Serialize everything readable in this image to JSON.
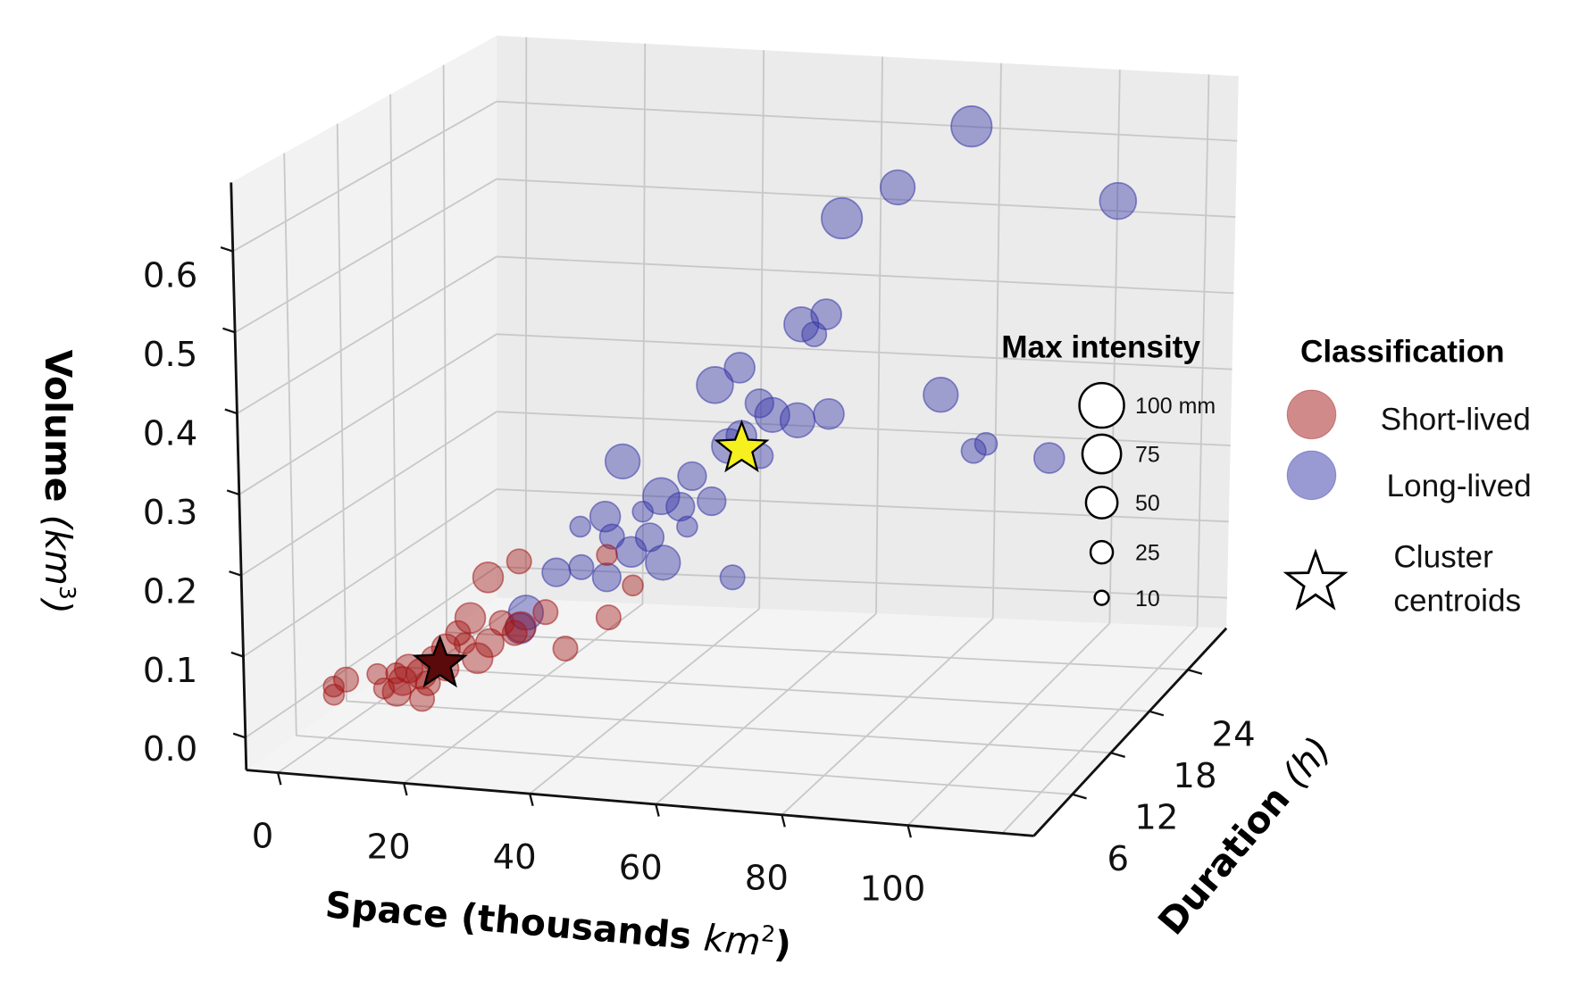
{
  "chart_data": {
    "type": "scatter",
    "projection": "3d",
    "title": "",
    "xlabel": "Space (thousands km²)",
    "xlabel_main": "Space (thousands ",
    "xlabel_unit": "km",
    "xlabel_sup": "2",
    "xlabel_close": ")",
    "ylabel_main": "Duration ",
    "ylabel_unit": "(h)",
    "zlabel_main": "Volume ",
    "zlabel_unit": "(km",
    "zlabel_sup": "3",
    "zlabel_close": ")",
    "xlim": [
      -5,
      120
    ],
    "ylim": [
      0,
      30
    ],
    "zlim": [
      -0.04,
      0.685
    ],
    "xticks": [
      "0",
      "20",
      "40",
      "60",
      "80",
      "100"
    ],
    "xtick_values": [
      0,
      20,
      40,
      60,
      80,
      100
    ],
    "yticks": [
      "6",
      "12",
      "18",
      "24"
    ],
    "ytick_values": [
      6,
      12,
      18,
      24
    ],
    "zticks": [
      "0.0",
      "0.1",
      "0.2",
      "0.3",
      "0.4",
      "0.5",
      "0.6"
    ],
    "ztick_values": [
      0,
      0.1,
      0.2,
      0.3,
      0.4,
      0.5,
      0.6
    ],
    "grid": true,
    "colors": {
      "short": "#a31515",
      "long": "#3434a8",
      "centroid_long": "#f5f01e",
      "centroid_short": "#5a0a0a"
    },
    "series": [
      {
        "name": "Short-lived",
        "class": "short",
        "points": [
          {
            "space": 2,
            "duration": 6,
            "volume": 0.01,
            "intensity": 21
          },
          {
            "space": 2,
            "duration": 6,
            "volume": 0.02,
            "intensity": 21
          },
          {
            "space": 4,
            "duration": 6,
            "volume": 0.03,
            "intensity": 30
          },
          {
            "space": 9,
            "duration": 6,
            "volume": 0.04,
            "intensity": 21
          },
          {
            "space": 12,
            "duration": 6,
            "volume": 0.02,
            "intensity": 40
          },
          {
            "space": 13,
            "duration": 6,
            "volume": 0.034,
            "intensity": 40
          },
          {
            "space": 16,
            "duration": 6,
            "volume": 0.045,
            "intensity": 46
          },
          {
            "space": 18,
            "duration": 6,
            "volume": 0.065,
            "intensity": 30
          },
          {
            "space": 20,
            "duration": 6,
            "volume": 0.079,
            "intensity": 40
          },
          {
            "space": 20,
            "duration": 6,
            "volume": 0.054,
            "intensity": 30
          },
          {
            "space": 23,
            "duration": 6,
            "volume": 0.087,
            "intensity": 21
          },
          {
            "space": 25,
            "duration": 6,
            "volume": 0.07,
            "intensity": 46
          },
          {
            "space": 27,
            "duration": 6,
            "volume": 0.09,
            "intensity": 40
          },
          {
            "space": 24,
            "duration": 6,
            "volume": 0.119,
            "intensity": 46
          },
          {
            "space": 27,
            "duration": 6,
            "volume": 0.171,
            "intensity": 46
          },
          {
            "space": 32,
            "duration": 6,
            "volume": 0.194,
            "intensity": 30
          },
          {
            "space": 31,
            "duration": 6,
            "volume": 0.105,
            "intensity": 30
          },
          {
            "space": 36,
            "duration": 6,
            "volume": 0.134,
            "intensity": 30
          },
          {
            "space": 39,
            "duration": 6,
            "volume": 0.091,
            "intensity": 30
          },
          {
            "space": 46,
            "duration": 6,
            "volume": 0.134,
            "intensity": 30
          },
          {
            "space": 46,
            "duration": 6,
            "volume": 0.211,
            "intensity": 21
          },
          {
            "space": 50,
            "duration": 6,
            "volume": 0.176,
            "intensity": 21
          },
          {
            "space": 32,
            "duration": 6,
            "volume": 0.113,
            "intensity": 46
          },
          {
            "space": 16,
            "duration": 6,
            "volume": 0.014,
            "intensity": 30
          },
          {
            "space": 10,
            "duration": 6,
            "volume": 0.023,
            "intensity": 21
          },
          {
            "space": 14,
            "duration": 6,
            "volume": 0.05,
            "intensity": 40
          },
          {
            "space": 17,
            "duration": 6,
            "volume": 0.034,
            "intensity": 30
          },
          {
            "space": 12,
            "duration": 6,
            "volume": 0.043,
            "intensity": 21
          },
          {
            "space": 22,
            "duration": 6,
            "volume": 0.099,
            "intensity": 30
          },
          {
            "space": 29,
            "duration": 6,
            "volume": 0.116,
            "intensity": 30
          }
        ]
      },
      {
        "name": "Long-lived",
        "class": "long",
        "points": [
          {
            "space": 27,
            "duration": 15,
            "volume": 0.106,
            "intensity": 40
          },
          {
            "space": 31,
            "duration": 15,
            "volume": 0.115,
            "intensity": 30
          },
          {
            "space": 35,
            "duration": 15,
            "volume": 0.105,
            "intensity": 40
          },
          {
            "space": 22,
            "duration": 15,
            "volume": 0.053,
            "intensity": 60
          },
          {
            "space": 21,
            "duration": 15,
            "volume": 0.033,
            "intensity": 46
          },
          {
            "space": 35,
            "duration": 15,
            "volume": 0.18,
            "intensity": 46
          },
          {
            "space": 39,
            "duration": 15,
            "volume": 0.139,
            "intensity": 46
          },
          {
            "space": 42,
            "duration": 15,
            "volume": 0.159,
            "intensity": 40
          },
          {
            "space": 44,
            "duration": 15,
            "volume": 0.129,
            "intensity": 60
          },
          {
            "space": 44,
            "duration": 15,
            "volume": 0.211,
            "intensity": 67
          },
          {
            "space": 47,
            "duration": 15,
            "volume": 0.2,
            "intensity": 40
          },
          {
            "space": 48,
            "duration": 15,
            "volume": 0.176,
            "intensity": 21
          },
          {
            "space": 49,
            "duration": 15,
            "volume": 0.239,
            "intensity": 40
          },
          {
            "space": 52,
            "duration": 15,
            "volume": 0.21,
            "intensity": 40
          },
          {
            "space": 38,
            "duration": 15,
            "volume": 0.25,
            "intensity": 60
          },
          {
            "space": 53,
            "duration": 15,
            "volume": 0.354,
            "intensity": 67
          },
          {
            "space": 57,
            "duration": 15,
            "volume": 0.378,
            "intensity": 46
          },
          {
            "space": 60,
            "duration": 15,
            "volume": 0.336,
            "intensity": 40
          },
          {
            "space": 62,
            "duration": 15,
            "volume": 0.323,
            "intensity": 60
          },
          {
            "space": 66,
            "duration": 15,
            "volume": 0.319,
            "intensity": 60
          },
          {
            "space": 71,
            "duration": 15,
            "volume": 0.33,
            "intensity": 46
          },
          {
            "space": 67,
            "duration": 15,
            "volume": 0.438,
            "intensity": 60
          },
          {
            "space": 71,
            "duration": 15,
            "volume": 0.453,
            "intensity": 46
          },
          {
            "space": 69,
            "duration": 15,
            "volume": 0.427,
            "intensity": 30
          },
          {
            "space": 55,
            "duration": 15,
            "volume": 0.118,
            "intensity": 30
          },
          {
            "space": 55,
            "duration": 15,
            "volume": 0.28,
            "intensity": 60
          },
          {
            "space": 57,
            "duration": 15,
            "volume": 0.294,
            "intensity": 46
          },
          {
            "space": 60,
            "duration": 15,
            "volume": 0.271,
            "intensity": 30
          },
          {
            "space": 41,
            "duration": 15,
            "volume": 0.19,
            "intensity": 21
          },
          {
            "space": 36,
            "duration": 15,
            "volume": 0.156,
            "intensity": 30
          },
          {
            "space": 31,
            "duration": 15,
            "volume": 0.165,
            "intensity": 21
          },
          {
            "space": 84,
            "duration": 24,
            "volume": 0.622,
            "intensity": 83
          },
          {
            "space": 72,
            "duration": 24,
            "volume": 0.539,
            "intensity": 60
          },
          {
            "space": 63,
            "duration": 24,
            "volume": 0.495,
            "intensity": 83
          },
          {
            "space": 107,
            "duration": 24,
            "volume": 0.545,
            "intensity": 67
          },
          {
            "space": 78,
            "duration": 24,
            "volume": 0.287,
            "intensity": 60
          },
          {
            "space": 83,
            "duration": 24,
            "volume": 0.221,
            "intensity": 30
          },
          {
            "space": 85,
            "duration": 24,
            "volume": 0.231,
            "intensity": 25
          },
          {
            "space": 95,
            "duration": 24,
            "volume": 0.22,
            "intensity": 46
          }
        ]
      }
    ],
    "centroids": [
      {
        "class": "short",
        "space": 19,
        "duration": 6,
        "volume": 0.059
      },
      {
        "class": "long",
        "space": 57,
        "duration": 15,
        "volume": 0.278
      }
    ],
    "legend_size": {
      "title": "Max intensity",
      "items": [
        {
          "value": 100,
          "label": "100 mm"
        },
        {
          "value": 75,
          "label": "75"
        },
        {
          "value": 50,
          "label": "50"
        },
        {
          "value": 25,
          "label": "25"
        },
        {
          "value": 10,
          "label": "10"
        }
      ],
      "placement": "right"
    },
    "legend_class": {
      "title": "Classification",
      "items": [
        {
          "label": "Short-lived",
          "marker": "circle",
          "class": "short"
        },
        {
          "label": "Long-lived",
          "marker": "circle",
          "class": "long"
        }
      ],
      "centroid_label_1": "Cluster",
      "centroid_label_2": "centroids",
      "placement": "right"
    }
  }
}
